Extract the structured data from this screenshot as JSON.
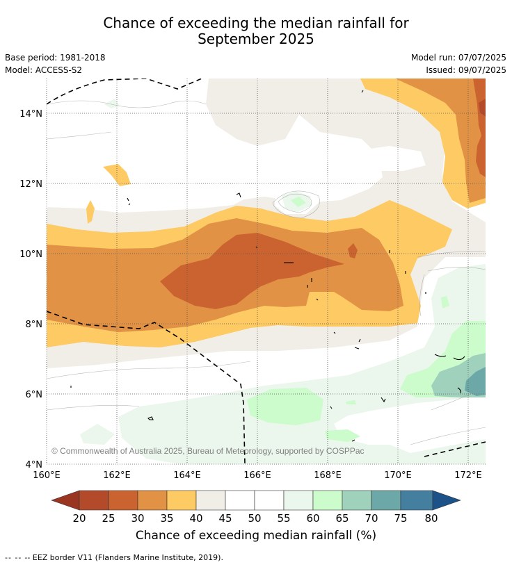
{
  "title_line1": "Chance of exceeding the median rainfall for",
  "title_line2": "September 2025",
  "base_period": "Base period: 1981-2018",
  "model": "Model: ACCESS-S2",
  "model_run": "Model run: 07/07/2025",
  "issued": "Issued: 09/07/2025",
  "copyright": "© Commonwealth of Australia 2025, Bureau of Meteorology, supported by COSPPac",
  "colorbar_label": "Chance of exceeding median rainfall (%)",
  "footer_text": "-- EEZ border V11 (Flanders Marine Institute, 2019).",
  "footer_dashes": "-- --",
  "x_ticks": [
    "160°E",
    "162°E",
    "164°E",
    "166°E",
    "168°E",
    "170°E",
    "172°E"
  ],
  "y_ticks": [
    "4°N",
    "6°N",
    "8°N",
    "10°N",
    "12°N",
    "14°N"
  ],
  "colorbar_ticks": [
    "20",
    "25",
    "30",
    "35",
    "40",
    "45",
    "50",
    "55",
    "60",
    "65",
    "70",
    "75",
    "80"
  ],
  "colors": {
    "below_20": "#9a3522",
    "c20_25": "#b34b2a",
    "c25_30": "#cb6331",
    "c30_35": "#e19245",
    "c35_40": "#fdca63",
    "c40_45": "#f1eee8",
    "c45_50": "#ffffff",
    "c50_55": "#ffffff",
    "c55_60": "#ebf6ec",
    "c60_65": "#ccfbcc",
    "c65_70": "#9fd1bc",
    "c70_75": "#6ca8a8",
    "c75_80": "#457fa0",
    "above_80": "#1d5288"
  }
}
